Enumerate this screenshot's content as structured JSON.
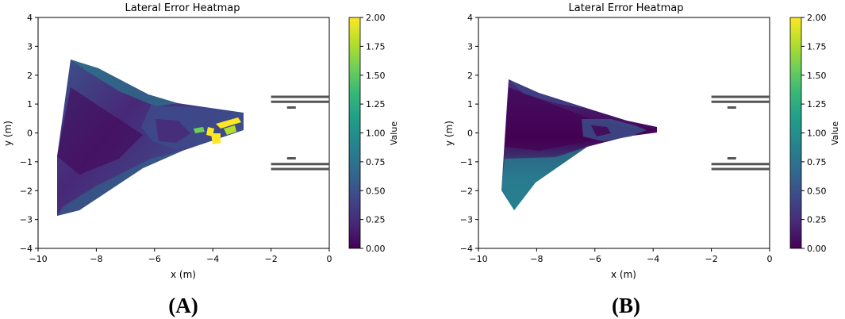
{
  "chart_data": [
    {
      "type": "heatmap",
      "panel_label": "(A)",
      "title": "Lateral Error Heatmap",
      "xlabel": "x (m)",
      "ylabel": "y (m)",
      "xlim": [
        -10,
        0
      ],
      "ylim": [
        -4,
        4
      ],
      "xticks": [
        -10,
        -8,
        -6,
        -4,
        -2,
        0
      ],
      "yticks": [
        -4,
        -3,
        -2,
        -1,
        0,
        1,
        2,
        3,
        4
      ],
      "xtick_labels": [
        "−10",
        "−8",
        "−6",
        "−4",
        "−2",
        "0"
      ],
      "ytick_labels": [
        "−4",
        "−3",
        "−2",
        "−1",
        "0",
        "1",
        "2",
        "3",
        "4"
      ],
      "colorbar": {
        "label": "Value",
        "range": [
          0,
          2
        ],
        "ticks": [
          "0.00",
          "0.25",
          "0.50",
          "0.75",
          "1.00",
          "1.25",
          "1.50",
          "1.75",
          "2.00"
        ],
        "colormap": "viridis"
      },
      "region_vertices": [
        [
          -9.5,
          -2.9
        ],
        [
          -9.5,
          -0.8
        ],
        [
          -8.9,
          2.5
        ],
        [
          -4.5,
          1.3
        ],
        [
          -3.0,
          0.7
        ],
        [
          -3.0,
          0.1
        ],
        [
          -5.0,
          -0.6
        ],
        [
          -8.5,
          -2.7
        ]
      ],
      "values_summary": {
        "background": 0.3,
        "upper_band": 0.8,
        "hot_zone_x": [
          -4.2,
          -3.0
        ],
        "hot_zone_max": 2.0
      },
      "lane_lines": [
        {
          "x": [
            -2,
            0
          ],
          "y": 1.25
        },
        {
          "x": [
            -2,
            0
          ],
          "y": 1.08
        },
        {
          "x": [
            -1.45,
            -1.15
          ],
          "y": 0.88
        },
        {
          "x": [
            -1.45,
            -1.15
          ],
          "y": -0.88
        },
        {
          "x": [
            -2,
            0
          ],
          "y": -1.08
        },
        {
          "x": [
            -2,
            0
          ],
          "y": -1.25
        }
      ]
    },
    {
      "type": "heatmap",
      "panel_label": "(B)",
      "title": "Lateral Error Heatmap",
      "xlabel": "x (m)",
      "ylabel": "y (m)",
      "xlim": [
        -10,
        0
      ],
      "ylim": [
        -4,
        4
      ],
      "xticks": [
        -10,
        -8,
        -6,
        -4,
        -2,
        0
      ],
      "yticks": [
        -4,
        -3,
        -2,
        -1,
        0,
        1,
        2,
        3,
        4
      ],
      "xtick_labels": [
        "−10",
        "−8",
        "−6",
        "−4",
        "−2",
        "0"
      ],
      "ytick_labels": [
        "−4",
        "−3",
        "−2",
        "−1",
        "0",
        "1",
        "2",
        "3",
        "4"
      ],
      "colorbar": {
        "label": "Value",
        "range": [
          0,
          2
        ],
        "ticks": [
          "0.00",
          "0.25",
          "0.50",
          "0.75",
          "1.00",
          "1.25",
          "1.50",
          "1.75",
          "2.00"
        ],
        "colormap": "viridis"
      },
      "region_vertices": [
        [
          -9.3,
          -1.5
        ],
        [
          -9.0,
          1.8
        ],
        [
          -6.0,
          0.8
        ],
        [
          -4.0,
          0.15
        ],
        [
          -4.0,
          -0.1
        ],
        [
          -6.5,
          -0.8
        ],
        [
          -8.8,
          -2.7
        ],
        [
          -9.3,
          -2.4
        ]
      ],
      "values_summary": {
        "background": 0.1,
        "lower_band": 0.6,
        "max": 0.65
      },
      "lane_lines": [
        {
          "x": [
            -2,
            0
          ],
          "y": 1.25
        },
        {
          "x": [
            -2,
            0
          ],
          "y": 1.08
        },
        {
          "x": [
            -1.45,
            -1.15
          ],
          "y": 0.88
        },
        {
          "x": [
            -1.45,
            -1.15
          ],
          "y": -0.88
        },
        {
          "x": [
            -2,
            0
          ],
          "y": -1.08
        },
        {
          "x": [
            -2,
            0
          ],
          "y": -1.25
        }
      ]
    }
  ],
  "colors": {
    "viridis": [
      "#440154",
      "#482878",
      "#3e4989",
      "#31688e",
      "#26828e",
      "#1f9e89",
      "#35b779",
      "#6ece58",
      "#b5de2b",
      "#fde725"
    ],
    "lane_line": "#555555"
  }
}
